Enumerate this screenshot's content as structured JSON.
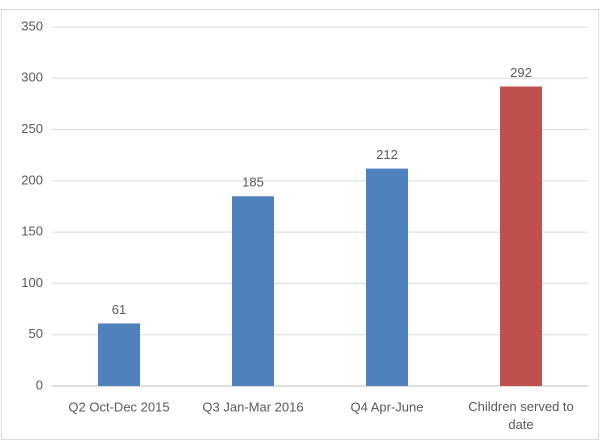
{
  "chart_data": {
    "type": "bar",
    "categories": [
      "Q2 Oct-Dec 2015",
      "Q3 Jan-Mar 2016",
      "Q4 Apr-June",
      "Children served to date"
    ],
    "values": [
      61,
      185,
      212,
      292
    ],
    "colors": [
      "#4f81bd",
      "#4f81bd",
      "#4f81bd",
      "#c0504d"
    ],
    "ylim": [
      0,
      350
    ],
    "yticks": [
      0,
      50,
      100,
      150,
      200,
      250,
      300,
      350
    ],
    "grid": true
  }
}
